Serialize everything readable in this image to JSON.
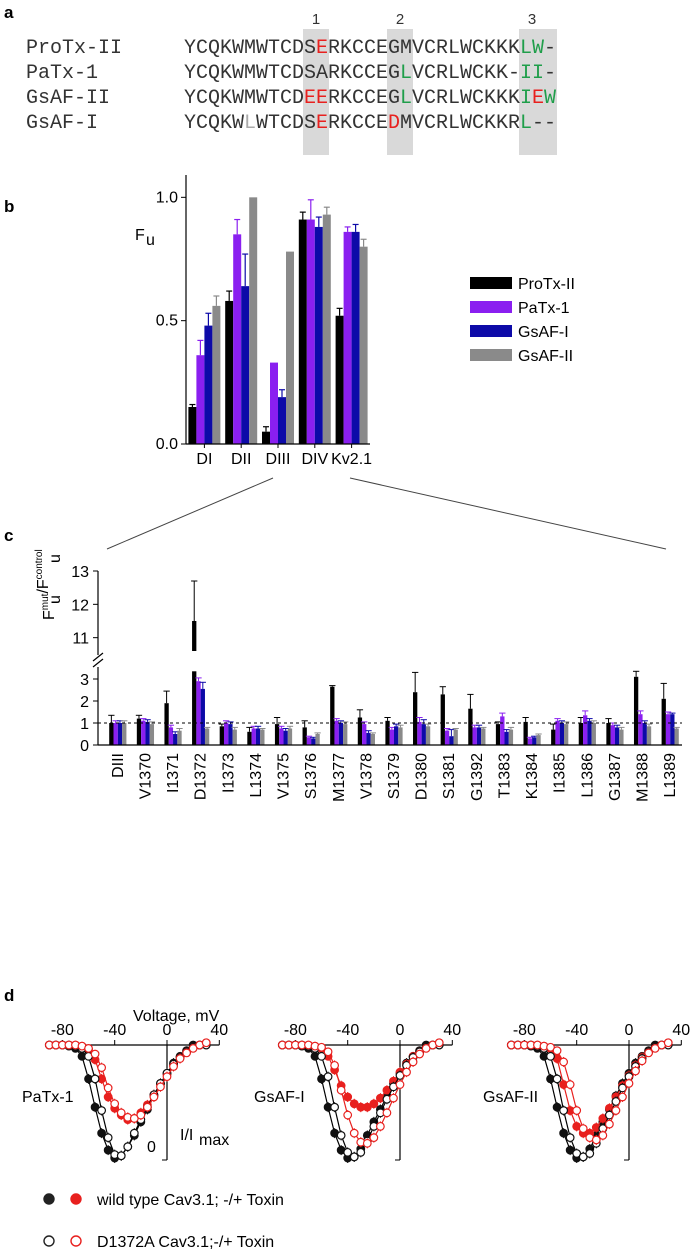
{
  "panels": {
    "a": {
      "letter": "a",
      "region_numbers": [
        "1",
        "2",
        "3"
      ],
      "sequences": [
        {
          "name": "ProTx-II",
          "seq": "YCQKWMWTCDSERKCCEGMVCRLWCKKKLW-",
          "colors": {
            "11": "red",
            "28": "green",
            "29": "green"
          }
        },
        {
          "name": "PaTx-1",
          "seq": "YCQKWMWTCDSARKCCEGLVCRLWCKK-II-",
          "colors": {
            "18": "green",
            "28": "green",
            "29": "green"
          }
        },
        {
          "name": "GsAF-II",
          "seq": "YCQKWMWTCDEERKCCEGLVCRLWCKKKIEW",
          "colors": {
            "10": "red",
            "11": "red",
            "18": "green",
            "28": "green",
            "29": "red",
            "30": "green"
          }
        },
        {
          "name": "GsAF-I",
          "seq": "YCQKWLWTCDSERKCCEDMVCRLWCKKRL--",
          "colors": {
            "5": "gray",
            "11": "red",
            "17": "red",
            "28": "green"
          }
        }
      ]
    },
    "b": {
      "letter": "b",
      "ylabel_main": "F",
      "ylabel_sub": "u"
    },
    "c": {
      "letter": "c",
      "ylabel_main": "F",
      "ylabel_sup1": "mut",
      "ylabel_slash": "/F",
      "ylabel_sub2": "u",
      "ylabel_sup2": "control",
      "ylabel_sub1": "u"
    },
    "d": {
      "letter": "d",
      "xlabel": "Voltage, mV",
      "xticks": [
        "-80",
        "-40",
        "0",
        "40"
      ],
      "ylabel_main": "I/I",
      "ylabel_sub": "max",
      "yorigin_label": "0",
      "subplots": [
        "PaTx-1",
        "GsAF-I",
        "GsAF-II"
      ],
      "legend": [
        {
          "label": "wild type Cav3.1; -/+ Toxin"
        },
        {
          "label": "D1372A Cav3.1;-/+ Toxin"
        }
      ]
    }
  },
  "colors": {
    "ProTx-II": "#000000",
    "PaTx-1": "#8a1ff0",
    "GsAF-I": "#0d0aa8",
    "GsAF-II": "#8a8a8a",
    "red": "#e8201e",
    "green": "#1f9e4a",
    "highlight": "#d9d9d9"
  },
  "chart_data": [
    {
      "type": "bar",
      "panel": "b",
      "categories": [
        "DI",
        "DII",
        "DIII",
        "DIV",
        "Kv2.1"
      ],
      "series": [
        {
          "name": "ProTx-II",
          "values": [
            0.15,
            0.58,
            0.05,
            0.91,
            0.52
          ],
          "errors": [
            0.01,
            0.04,
            0.02,
            0.03,
            0.03
          ]
        },
        {
          "name": "PaTx-1",
          "values": [
            0.36,
            0.85,
            0.33,
            0.91,
            0.86
          ],
          "errors": [
            0.06,
            0.06,
            0.0,
            0.08,
            0.02
          ]
        },
        {
          "name": "GsAF-I",
          "values": [
            0.48,
            0.64,
            0.19,
            0.88,
            0.86
          ],
          "errors": [
            0.05,
            0.13,
            0.03,
            0.04,
            0.03
          ]
        },
        {
          "name": "GsAF-II",
          "values": [
            0.56,
            1.0,
            0.78,
            0.93,
            0.8
          ],
          "errors": [
            0.04,
            0.0,
            0.0,
            0.03,
            0.03
          ]
        }
      ],
      "yticks": [
        "0.0",
        "0.5",
        "1.0"
      ],
      "ylim": [
        0,
        1.05
      ]
    },
    {
      "type": "bar",
      "panel": "c",
      "categories": [
        "DIII",
        "V1370",
        "I1371",
        "D1372",
        "I1373",
        "L1374",
        "V1375",
        "S1376",
        "M1377",
        "V1378",
        "S1379",
        "D1380",
        "S1381",
        "G1392",
        "T1383",
        "K1384",
        "I1385",
        "L1386",
        "G1387",
        "M1388",
        "L1389"
      ],
      "series": [
        {
          "name": "ProTx-II",
          "values": [
            1.0,
            1.2,
            1.9,
            11.5,
            0.85,
            0.6,
            0.95,
            0.8,
            2.65,
            1.25,
            1.1,
            2.4,
            2.3,
            1.65,
            0.95,
            1.05,
            0.7,
            1.0,
            1.0,
            3.1,
            2.1
          ],
          "errors": [
            0.35,
            0.15,
            0.55,
            1.2,
            0.1,
            0.2,
            0.3,
            0.3,
            0.05,
            0.35,
            0.15,
            0.9,
            0.35,
            0.65,
            0.1,
            0.2,
            0.25,
            0.25,
            0.2,
            0.4,
            0.7
          ]
        },
        {
          "name": "PaTx-1",
          "values": [
            1.0,
            1.1,
            0.8,
            2.9,
            1.0,
            0.75,
            0.75,
            0.35,
            1.1,
            0.95,
            0.7,
            1.05,
            0.65,
            0.8,
            1.3,
            0.3,
            1.1,
            1.35,
            0.9,
            1.4,
            1.4
          ],
          "errors": [
            0.1,
            0.1,
            0.1,
            0.15,
            0.1,
            0.1,
            0.1,
            0.05,
            0.1,
            0.1,
            0.1,
            0.2,
            0.1,
            0.1,
            0.15,
            0.05,
            0.1,
            0.2,
            0.1,
            0.15,
            0.1
          ]
        },
        {
          "name": "GsAF-I",
          "values": [
            1.0,
            1.05,
            0.5,
            2.55,
            0.95,
            0.75,
            0.65,
            0.3,
            1.0,
            0.55,
            0.85,
            0.95,
            0.4,
            0.8,
            0.6,
            0.35,
            1.0,
            1.1,
            0.8,
            1.0,
            1.4
          ],
          "errors": [
            0.1,
            0.1,
            0.1,
            0.3,
            0.1,
            0.1,
            0.1,
            0.05,
            0.1,
            0.1,
            0.1,
            0.2,
            0.3,
            0.1,
            0.1,
            0.05,
            0.1,
            0.1,
            0.1,
            0.1,
            0.05
          ]
        },
        {
          "name": "GsAF-II",
          "values": [
            1.0,
            0.95,
            0.65,
            0.75,
            0.7,
            0.7,
            0.75,
            0.5,
            0.95,
            0.5,
            0.8,
            0.85,
            0.7,
            0.75,
            0.7,
            0.45,
            0.95,
            1.0,
            0.7,
            0.85,
            0.75
          ],
          "errors": [
            0.1,
            0.1,
            0.1,
            0.05,
            0.1,
            0.05,
            0.1,
            0.05,
            0.1,
            0.05,
            0.1,
            0.1,
            0.05,
            0.05,
            0.1,
            0.05,
            0.1,
            0.1,
            0.1,
            0.1,
            0.05
          ]
        }
      ],
      "yticks_lower": [
        "0",
        "1",
        "2",
        "3"
      ],
      "yticks_upper": [
        "11",
        "12",
        "13"
      ],
      "axis_break": [
        3.5,
        10.5
      ],
      "reference_line": 1.0
    },
    {
      "type": "scatter",
      "panel": "d",
      "xlim": [
        -90,
        40
      ],
      "ylim": [
        -1.05,
        0.05
      ],
      "x": [
        -90,
        -85,
        -80,
        -75,
        -70,
        -65,
        -60,
        -55,
        -50,
        -45,
        -40,
        -35,
        -30,
        -25,
        -20,
        -15,
        -10,
        -5,
        0,
        5,
        10,
        15,
        20,
        25,
        30
      ],
      "subplots": [
        {
          "name": "PaTx-1",
          "series": [
            {
              "name": "wild type -Toxin",
              "values": [
                0,
                0,
                0,
                -0.01,
                -0.03,
                -0.1,
                -0.3,
                -0.55,
                -0.78,
                -0.93,
                -1.0,
                -0.98,
                -0.9,
                -0.8,
                -0.68,
                -0.57,
                -0.45,
                -0.34,
                -0.25,
                -0.16,
                -0.1,
                -0.05,
                0,
                0,
                0
              ]
            },
            {
              "name": "wild type +Toxin",
              "values": [
                0,
                0,
                0,
                0,
                0,
                -0.01,
                -0.04,
                -0.13,
                -0.3,
                -0.46,
                -0.56,
                -0.62,
                -0.66,
                -0.65,
                -0.6,
                -0.53,
                -0.44,
                -0.35,
                -0.26,
                -0.18,
                -0.11,
                -0.06,
                -0.02,
                0,
                0.02
              ]
            },
            {
              "name": "D1372A -Toxin",
              "values": [
                0,
                0,
                0,
                0,
                -0.01,
                -0.03,
                -0.1,
                -0.3,
                -0.58,
                -0.82,
                -0.97,
                -0.98,
                -0.9,
                -0.78,
                -0.66,
                -0.55,
                -0.44,
                -0.34,
                -0.25,
                -0.17,
                -0.11,
                -0.06,
                -0.02,
                0,
                0
              ]
            },
            {
              "name": "D1372A +Toxin",
              "values": [
                0,
                0,
                0,
                0,
                0,
                -0.01,
                -0.03,
                -0.08,
                -0.2,
                -0.38,
                -0.52,
                -0.6,
                -0.64,
                -0.65,
                -0.62,
                -0.55,
                -0.46,
                -0.37,
                -0.28,
                -0.19,
                -0.12,
                -0.07,
                -0.03,
                0,
                0.02
              ]
            }
          ]
        },
        {
          "name": "GsAF-I",
          "series": [
            {
              "name": "wild type -Toxin",
              "values": [
                0,
                0,
                0,
                -0.01,
                -0.03,
                -0.1,
                -0.3,
                -0.55,
                -0.78,
                -0.93,
                -1.0,
                -0.99,
                -0.92,
                -0.8,
                -0.68,
                -0.57,
                -0.45,
                -0.34,
                -0.25,
                -0.16,
                -0.1,
                -0.05,
                0,
                0,
                0
              ]
            },
            {
              "name": "wild type +Toxin",
              "values": [
                0,
                0,
                0,
                0,
                0,
                -0.01,
                -0.03,
                -0.1,
                -0.22,
                -0.36,
                -0.46,
                -0.52,
                -0.55,
                -0.55,
                -0.52,
                -0.47,
                -0.4,
                -0.32,
                -0.24,
                -0.17,
                -0.1,
                -0.06,
                -0.02,
                0,
                0.02
              ]
            },
            {
              "name": "D1372A -Toxin",
              "values": [
                0,
                0,
                0,
                0,
                -0.01,
                -0.03,
                -0.1,
                -0.28,
                -0.55,
                -0.8,
                -0.95,
                -0.99,
                -0.95,
                -0.85,
                -0.72,
                -0.6,
                -0.48,
                -0.37,
                -0.27,
                -0.18,
                -0.11,
                -0.06,
                -0.02,
                0,
                0
              ]
            },
            {
              "name": "D1372A +Toxin",
              "values": [
                0,
                0,
                0,
                0,
                0,
                -0.01,
                -0.02,
                -0.06,
                -0.18,
                -0.4,
                -0.62,
                -0.78,
                -0.86,
                -0.87,
                -0.82,
                -0.72,
                -0.6,
                -0.47,
                -0.35,
                -0.24,
                -0.15,
                -0.08,
                -0.03,
                0,
                0.02
              ]
            }
          ]
        },
        {
          "name": "GsAF-II",
          "series": [
            {
              "name": "wild type -Toxin",
              "values": [
                0,
                0,
                0,
                -0.01,
                -0.03,
                -0.1,
                -0.3,
                -0.55,
                -0.78,
                -0.93,
                -1.0,
                -0.99,
                -0.92,
                -0.8,
                -0.68,
                -0.57,
                -0.45,
                -0.34,
                -0.25,
                -0.16,
                -0.1,
                -0.05,
                0,
                0,
                0
              ]
            },
            {
              "name": "wild type +Toxin",
              "values": [
                0,
                0,
                0,
                0,
                0,
                -0.01,
                -0.03,
                -0.12,
                -0.35,
                -0.58,
                -0.72,
                -0.78,
                -0.78,
                -0.73,
                -0.65,
                -0.56,
                -0.46,
                -0.36,
                -0.27,
                -0.18,
                -0.11,
                -0.06,
                -0.02,
                0,
                0.02
              ]
            },
            {
              "name": "D1372A -Toxin",
              "values": [
                0,
                0,
                0,
                0,
                -0.01,
                -0.03,
                -0.1,
                -0.3,
                -0.58,
                -0.82,
                -0.96,
                -0.99,
                -0.96,
                -0.87,
                -0.74,
                -0.62,
                -0.5,
                -0.38,
                -0.28,
                -0.19,
                -0.12,
                -0.06,
                -0.02,
                0,
                0
              ]
            },
            {
              "name": "D1372A +Toxin",
              "values": [
                0,
                0,
                0,
                0,
                0,
                -0.01,
                -0.02,
                -0.05,
                -0.15,
                -0.35,
                -0.58,
                -0.74,
                -0.82,
                -0.84,
                -0.8,
                -0.7,
                -0.58,
                -0.46,
                -0.34,
                -0.23,
                -0.14,
                -0.07,
                -0.03,
                0,
                0.02
              ]
            }
          ]
        }
      ]
    }
  ]
}
